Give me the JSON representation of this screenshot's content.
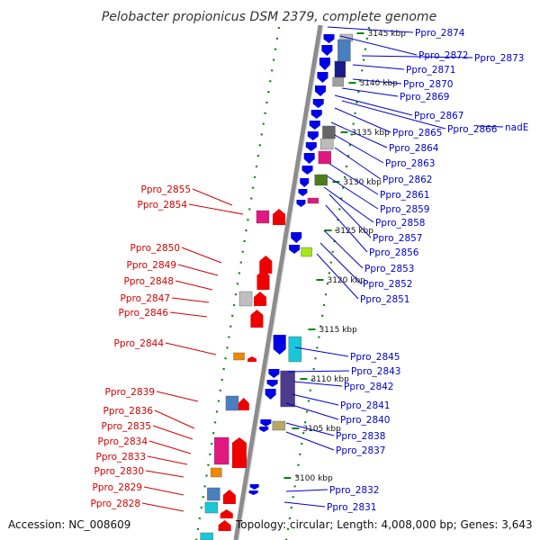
{
  "title": "Pelobacter propionicus DSM 2379, complete genome",
  "accession": "Accession: NC_008609",
  "summary": "Topology: circular; Length: 4,008,000 bp; Genes: 3,643",
  "colors": {
    "forward": "#0000e6",
    "reverse": "#ee0000",
    "backbone": "#8c8c8c",
    "ticks": "#008800",
    "label_forward": "#0000cc",
    "label_reverse": "#d40000"
  },
  "ticks": [
    "3145 kbp",
    "3140 kbp",
    "3135 kbp",
    "3130 kbp",
    "3125 kbp",
    "3120 kbp",
    "3115 kbp",
    "3110 kbp",
    "3105 kbp",
    "3100 kbp"
  ],
  "forward_labels": [
    "Ppro_2874",
    "Ppro_2872",
    "Ppro_2873",
    "Ppro_2871",
    "Ppro_2870",
    "Ppro_2869",
    "Ppro_2867",
    "Ppro_2866",
    "nadE",
    "Ppro_2865",
    "Ppro_2864",
    "Ppro_2863",
    "Ppro_2862",
    "Ppro_2861",
    "Ppro_2859",
    "Ppro_2858",
    "Ppro_2857",
    "Ppro_2856",
    "Ppro_2853",
    "Ppro_2852",
    "Ppro_2851",
    "Ppro_2845",
    "Ppro_2843",
    "Ppro_2842",
    "Ppro_2841",
    "Ppro_2840",
    "Ppro_2838",
    "Ppro_2837",
    "Ppro_2832",
    "Ppro_2831"
  ],
  "reverse_labels": [
    "Ppro_2855",
    "Ppro_2854",
    "Ppro_2850",
    "Ppro_2849",
    "Ppro_2848",
    "Ppro_2847",
    "Ppro_2846",
    "Ppro_2844",
    "Ppro_2839",
    "Ppro_2836",
    "Ppro_2835",
    "Ppro_2834",
    "Ppro_2833",
    "Ppro_2830",
    "Ppro_2829",
    "Ppro_2828"
  ]
}
